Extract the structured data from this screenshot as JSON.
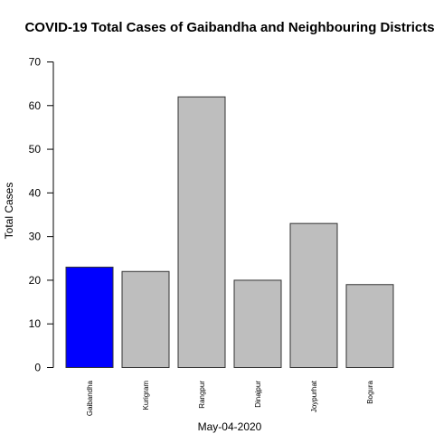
{
  "chart_data": {
    "type": "bar",
    "title": "COVID-19 Total Cases of Gaibandha and Neighbouring Districts",
    "xlabel": "May-04-2020",
    "ylabel": "Total Cases",
    "categories": [
      "Gaibandha",
      "Kurigram",
      "Rangpur",
      "Dinajpur",
      "Joypurhat",
      "Bogura"
    ],
    "values": [
      23,
      22,
      62,
      20,
      33,
      19
    ],
    "colors": [
      "#0000ff",
      "#bebebe",
      "#bebebe",
      "#bebebe",
      "#bebebe",
      "#bebebe"
    ],
    "ylim": [
      0,
      70
    ],
    "yticks": [
      0,
      10,
      20,
      30,
      40,
      50,
      60,
      70
    ],
    "grid": false,
    "bar_border_color": "#333333"
  }
}
